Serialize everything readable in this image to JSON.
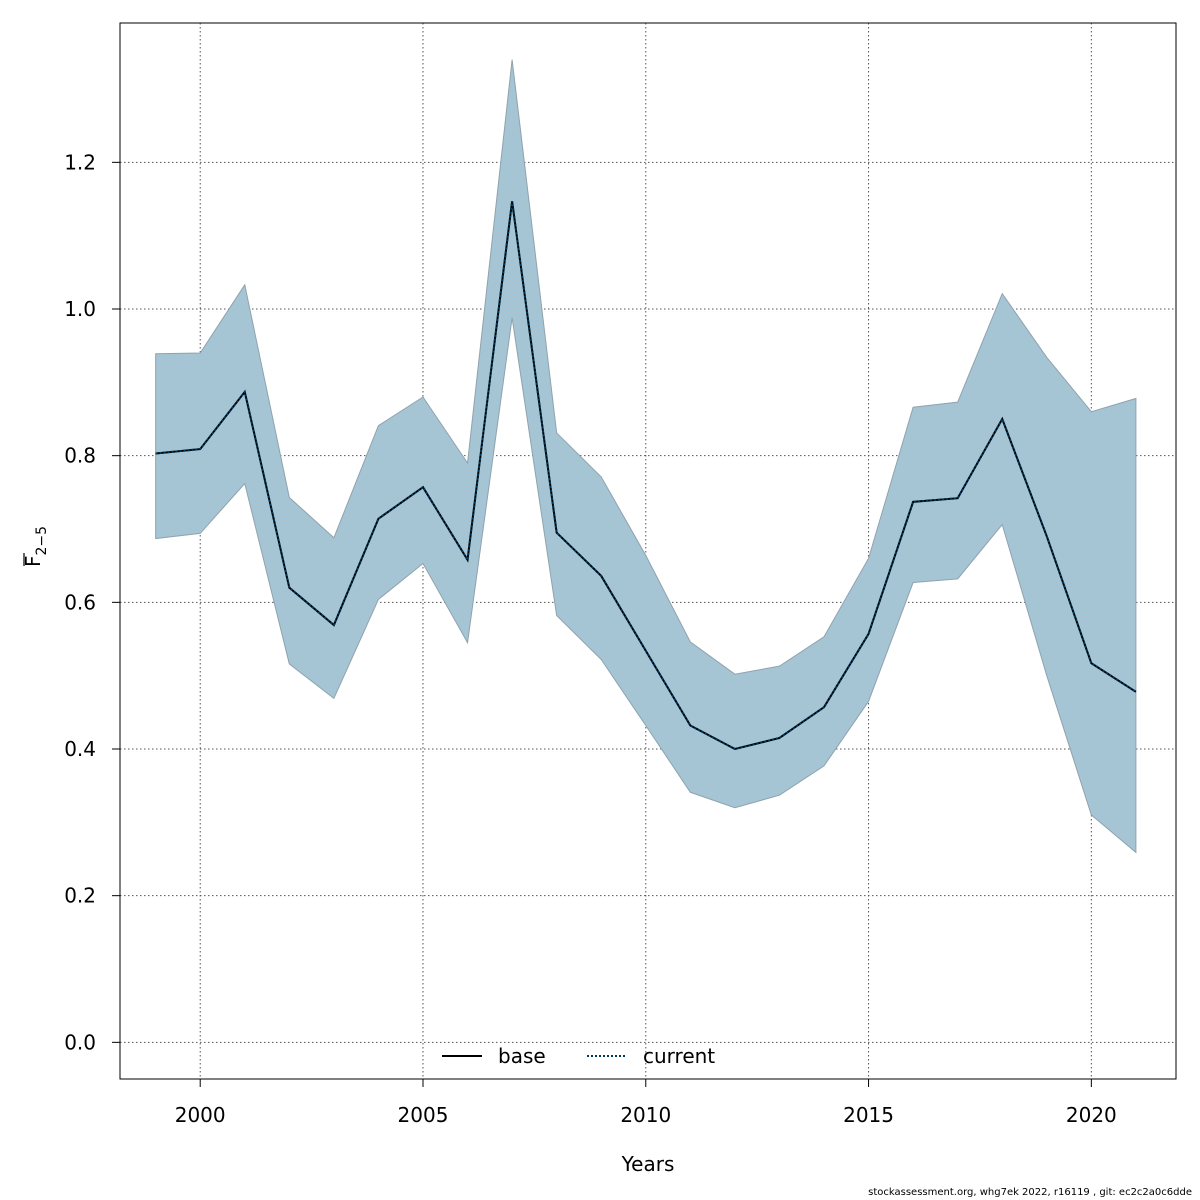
{
  "chart_data": {
    "type": "line",
    "xlabel": "Years",
    "ylabel": "F",
    "ylabel_subscript": "2−5",
    "xlim": [
      1998.2,
      2021.9
    ],
    "ylim": [
      -0.05,
      1.39
    ],
    "xticks": [
      2000,
      2005,
      2010,
      2015,
      2020
    ],
    "yticks": [
      0.0,
      0.2,
      0.4,
      0.6,
      0.8,
      1.0,
      1.2
    ],
    "ytick_labels": [
      "0.0",
      "0.2",
      "0.4",
      "0.6",
      "0.8",
      "1.0",
      "1.2"
    ],
    "grid": true,
    "legend_position": "bottom-center",
    "colors": {
      "band": "#a5c4d4",
      "band_edge": "#8fa3ae",
      "base": "#000000",
      "current": "#003a63",
      "grid": "#555555"
    },
    "x": [
      1999,
      2000,
      2001,
      2002,
      2003,
      2004,
      2005,
      2006,
      2007,
      2008,
      2009,
      2010,
      2011,
      2012,
      2013,
      2014,
      2015,
      2016,
      2017,
      2018,
      2019,
      2020,
      2021
    ],
    "series": [
      {
        "name": "base",
        "style": "solid",
        "values": [
          0.803,
          0.809,
          0.887,
          0.62,
          0.569,
          0.714,
          0.757,
          0.658,
          1.147,
          0.695,
          0.636,
          0.534,
          0.432,
          0.4,
          0.415,
          0.457,
          0.557,
          0.737,
          0.742,
          0.85,
          0.69,
          0.517,
          0.478
        ]
      },
      {
        "name": "current",
        "style": "dotted",
        "values": [
          0.803,
          0.809,
          0.887,
          0.62,
          0.569,
          0.714,
          0.757,
          0.658,
          1.147,
          0.695,
          0.636,
          0.534,
          0.432,
          0.4,
          0.415,
          0.457,
          0.557,
          0.737,
          0.742,
          0.85,
          0.69,
          0.517,
          0.478
        ]
      }
    ],
    "confidence_band": {
      "lower": [
        0.687,
        0.694,
        0.762,
        0.516,
        0.469,
        0.604,
        0.653,
        0.545,
        0.988,
        0.582,
        0.522,
        0.432,
        0.341,
        0.32,
        0.337,
        0.377,
        0.465,
        0.627,
        0.632,
        0.706,
        0.5,
        0.31,
        0.259
      ],
      "upper": [
        0.939,
        0.94,
        1.033,
        0.743,
        0.688,
        0.841,
        0.88,
        0.79,
        1.34,
        0.831,
        0.771,
        0.664,
        0.546,
        0.502,
        0.513,
        0.553,
        0.66,
        0.866,
        0.873,
        1.021,
        0.934,
        0.86,
        0.878
      ]
    }
  },
  "footer": "stockassessment.org, whg7ek  2022, r16119 , git: ec2c2a0c6dde"
}
